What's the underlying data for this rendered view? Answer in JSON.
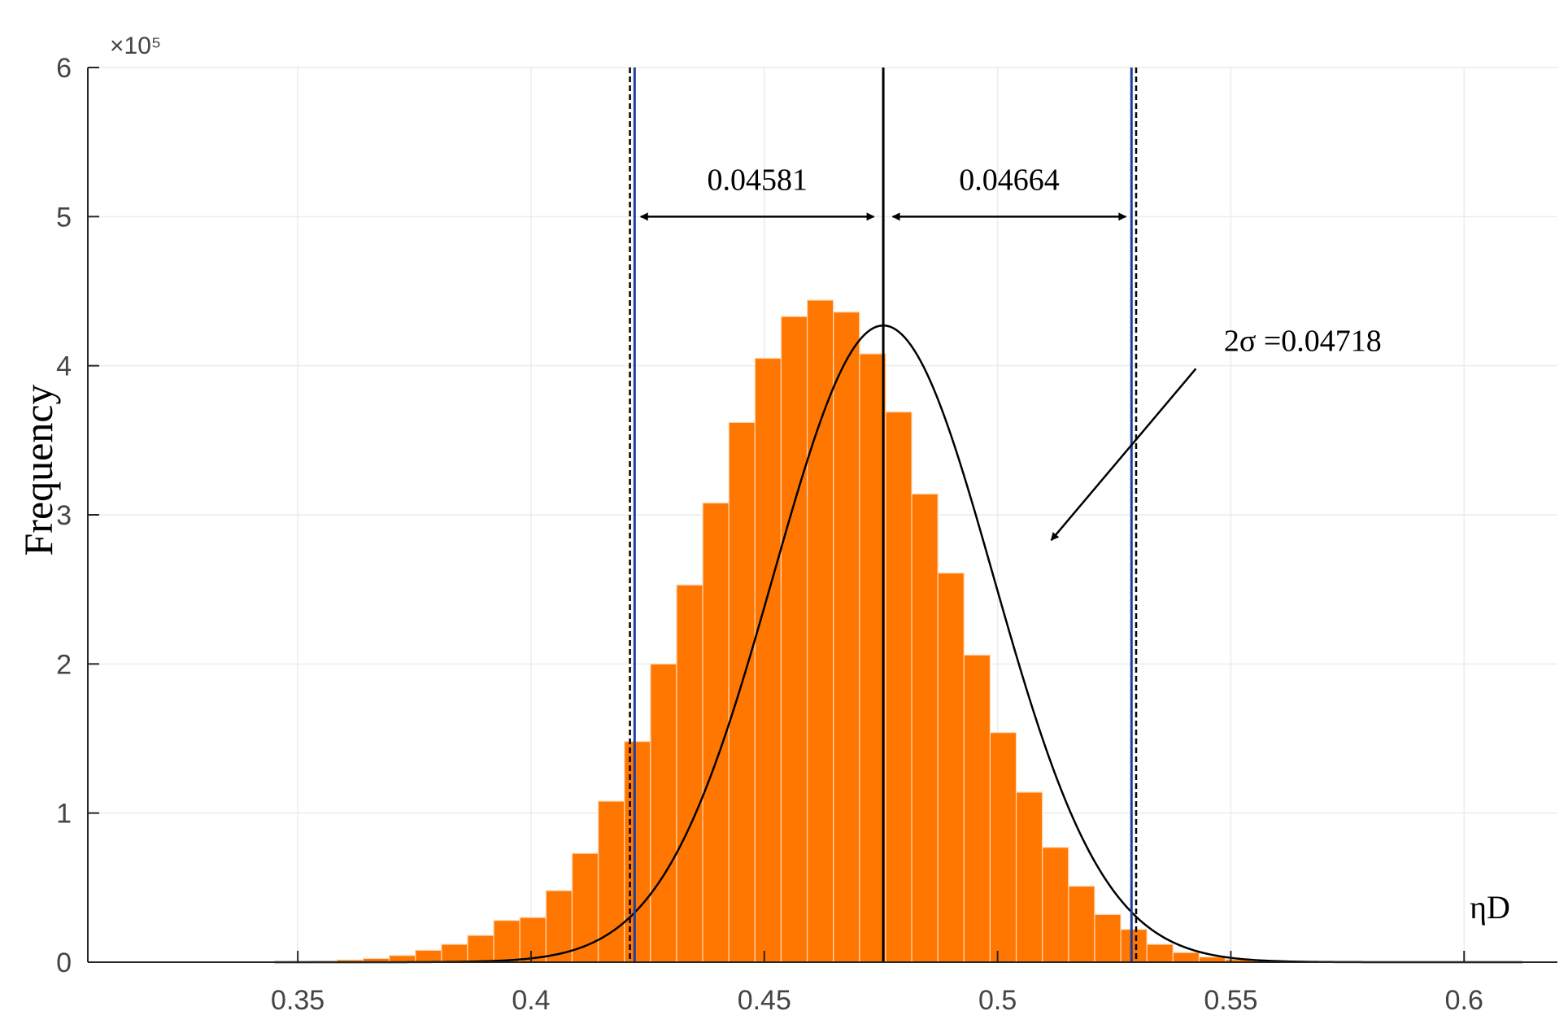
{
  "chart_data": {
    "type": "bar",
    "xlabel": "ηD",
    "ylabel": "Frequency",
    "y_exponent_label": "×10⁵",
    "xlim": [
      0.305,
      0.62
    ],
    "ylim": [
      0,
      600000
    ],
    "xticks": [
      0.35,
      0.4,
      0.45,
      0.5,
      0.55,
      0.6
    ],
    "xtick_labels": [
      "0.35",
      "0.4",
      "0.45",
      "0.5",
      "0.55",
      "0.6"
    ],
    "yticks": [
      0,
      100000,
      200000,
      300000,
      400000,
      500000,
      600000
    ],
    "ytick_labels": [
      "0",
      "1",
      "2",
      "3",
      "4",
      "5",
      "6"
    ],
    "grid": true,
    "bar_color": "#ff7700",
    "bin_width": 0.0056,
    "bins_left": [
      0.3416,
      0.3472,
      0.3528,
      0.3584,
      0.364,
      0.3696,
      0.3752,
      0.3808,
      0.3864,
      0.392,
      0.3976,
      0.4032,
      0.4088,
      0.4144,
      0.42,
      0.4256,
      0.4312,
      0.4368,
      0.4424,
      0.448,
      0.4536,
      0.4592,
      0.4648,
      0.4704,
      0.476,
      0.4816,
      0.4872,
      0.4928,
      0.4984,
      0.504,
      0.5096,
      0.5152,
      0.5208,
      0.5264,
      0.532,
      0.5376,
      0.5432,
      0.5488,
      0.5544,
      0.56,
      0.5656,
      0.5712
    ],
    "counts": [
      200,
      400,
      700,
      1500,
      2500,
      4500,
      8000,
      12000,
      18000,
      28000,
      30000,
      48000,
      73000,
      108000,
      148000,
      200000,
      253000,
      308000,
      362000,
      405000,
      433000,
      444000,
      436000,
      408000,
      369000,
      314000,
      261000,
      206000,
      154000,
      114000,
      77000,
      51000,
      32000,
      22000,
      12000,
      6500,
      3500,
      1800,
      900,
      400,
      200,
      100
    ],
    "fit_curve": {
      "type": "normal",
      "mean": 0.4755,
      "sigma": 0.02359,
      "peak": 427000,
      "x_range": [
        0.345,
        0.6125
      ],
      "color": "#000000"
    },
    "vertical_lines": [
      {
        "x": 0.4755,
        "style": "solid",
        "color": "#000000"
      },
      {
        "x": 0.4222,
        "style": "solid",
        "color": "#1f3f9f"
      },
      {
        "x": 0.4212,
        "style": "dashed",
        "color": "#000000"
      },
      {
        "x": 0.5287,
        "style": "solid",
        "color": "#1f3f9f"
      },
      {
        "x": 0.5297,
        "style": "dashed",
        "color": "#000000"
      }
    ],
    "annotations": [
      {
        "text": "0.04581",
        "x1": 0.4235,
        "x2": 0.4735,
        "y": 500000,
        "text_x": 0.4485,
        "text_y": 518000
      },
      {
        "text": "0.04664",
        "x1": 0.4775,
        "x2": 0.5275,
        "y": 500000,
        "text_x": 0.5025,
        "text_y": 518000
      },
      {
        "text": "2σ =0.04718",
        "text_x": 0.5485,
        "text_y": 410000,
        "arrow_from_x": 0.5425,
        "arrow_from_y": 398000,
        "arrow_to_x": 0.5115,
        "arrow_to_y": 283000
      }
    ]
  }
}
